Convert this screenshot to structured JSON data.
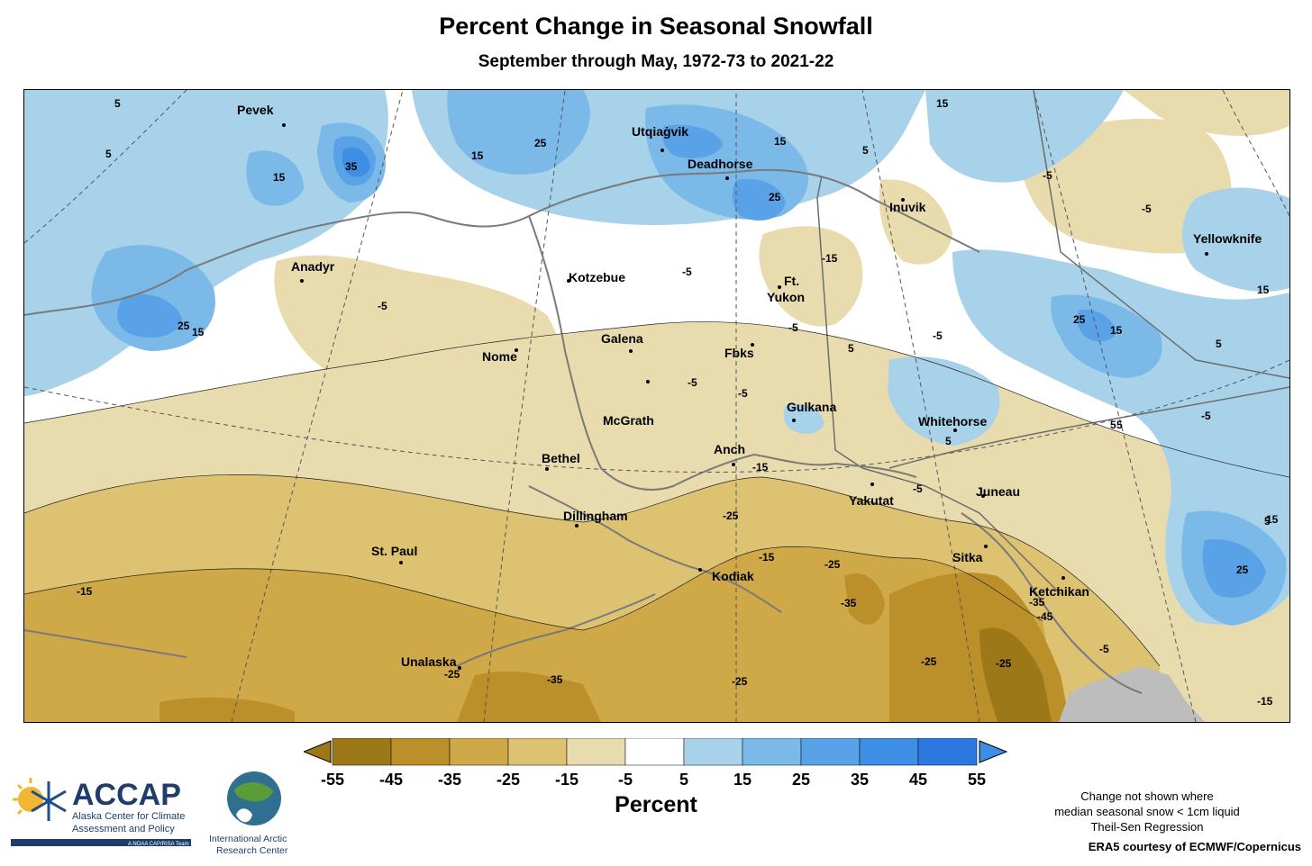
{
  "title": "Percent Change in Seasonal Snowfall",
  "subtitle": "September through May, 1972-73 to 2021-22",
  "colors": {
    "brown_-55": "#9c7818",
    "brown_-45": "#bb8f2a",
    "brown_-35": "#cfa947",
    "brown_-25": "#ddc272",
    "brown_-15": "#e8dcae",
    "neutral": "#ffffff",
    "blue_5": "#a7d2ea",
    "blue_15": "#7ab9e8",
    "blue_25": "#5aa2e8",
    "blue_35": "#3f8ee6",
    "blue_45": "#2c77e0",
    "no_data": "#bdbdbd"
  },
  "cities": [
    {
      "name": "Pevek"
    },
    {
      "name": "Utqiaġvik"
    },
    {
      "name": "Deadhorse"
    },
    {
      "name": "Inuvik"
    },
    {
      "name": "Yellowknife"
    },
    {
      "name": "Anadyr"
    },
    {
      "name": "Kotzebue"
    },
    {
      "name": "Ft."
    },
    {
      "name": "Yukon"
    },
    {
      "name": "Galena"
    },
    {
      "name": "Nome"
    },
    {
      "name": "Fbks"
    },
    {
      "name": "Gulkana"
    },
    {
      "name": "Whitehorse"
    },
    {
      "name": "McGrath"
    },
    {
      "name": "Bethel"
    },
    {
      "name": "Anch"
    },
    {
      "name": "Yakutat"
    },
    {
      "name": "Juneau"
    },
    {
      "name": "Dillingham"
    },
    {
      "name": "St. Paul"
    },
    {
      "name": "Sitka"
    },
    {
      "name": "Kodiak"
    },
    {
      "name": "Ketchikan"
    },
    {
      "name": "Unalaska"
    }
  ],
  "contour_labels": [
    "5",
    "25",
    "15",
    "35",
    "25",
    "15",
    "-5",
    "5",
    "15",
    "25",
    "15",
    "5",
    "-5",
    "-5",
    "-15",
    "-5",
    "-5",
    "5",
    "-5",
    "15",
    "25",
    "15",
    "5",
    "5",
    "-5",
    "5",
    "-5",
    "-15",
    "-25",
    "-15",
    "-25",
    "-35",
    "-25",
    "-25",
    "-25",
    "-35",
    "-25",
    "-15",
    "-5",
    "-15",
    "-35",
    "-45",
    "5",
    "-5",
    "5",
    "15",
    "25",
    "15",
    "-5"
  ],
  "legend": {
    "ticks": [
      "-55",
      "-45",
      "-35",
      "-25",
      "-15",
      "-5",
      "5",
      "15",
      "25",
      "35",
      "45",
      "55"
    ],
    "units": "Percent"
  },
  "notes": [
    "Change not shown where",
    "median seasonal snow < 1cm liquid",
    "Theil-Sen Regression"
  ],
  "credit": "ERA5 courtesy of ECMWF/Copernicus",
  "accap": {
    "name": "ACCAP",
    "line1": "Alaska Center for Climate",
    "line2": "Assessment and Policy",
    "line3": "A NOAA CAP/RISA Team"
  },
  "iarc": {
    "line1": "International Arctic",
    "line2": "Research Center"
  }
}
